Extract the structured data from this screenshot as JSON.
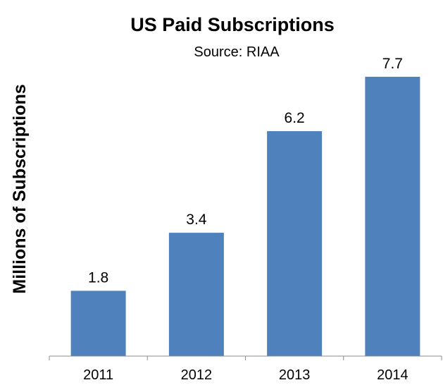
{
  "chart_data": {
    "type": "bar",
    "title": "US Paid Subscriptions",
    "subtitle": "Source: RIAA",
    "xlabel": "",
    "ylabel": "Millions of Subscriptions",
    "categories": [
      "2011",
      "2012",
      "2013",
      "2014"
    ],
    "series": [
      {
        "values": [
          1.8,
          3.4,
          6.2,
          7.7
        ],
        "color": "#4F81BD"
      }
    ],
    "data_labels": [
      "1.8",
      "3.4",
      "6.2",
      "7.7"
    ],
    "ylim": [
      0,
      9
    ],
    "y_axis_visible": false,
    "grid": false,
    "legend": "none"
  }
}
